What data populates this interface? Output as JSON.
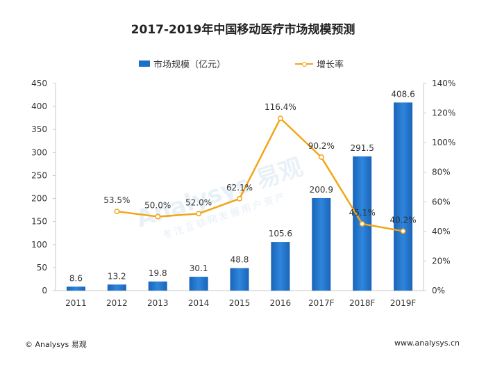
{
  "chart_data": {
    "type": "bar",
    "title": "2017-2019年中国移动医疗市场规模预测",
    "categories": [
      "2011",
      "2012",
      "2013",
      "2014",
      "2015",
      "2016",
      "2017F",
      "2018F",
      "2019F"
    ],
    "series": [
      {
        "name": "市场规模（亿元）",
        "type": "bar",
        "axis": "left",
        "color": "#1c6fc9",
        "values": [
          8.6,
          13.2,
          19.8,
          30.1,
          48.8,
          105.6,
          200.9,
          291.5,
          408.6
        ],
        "labels": [
          "8.6",
          "13.2",
          "19.8",
          "30.1",
          "48.8",
          "105.6",
          "200.9",
          "291.5",
          "408.6"
        ]
      },
      {
        "name": "增长率",
        "type": "line",
        "axis": "right",
        "color": "#f2a516",
        "values": [
          null,
          53.5,
          50.0,
          52.0,
          62.1,
          116.4,
          90.2,
          45.1,
          40.2
        ],
        "labels": [
          "",
          "53.5%",
          "50.0%",
          "52.0%",
          "62.1%",
          "116.4%",
          "90.2%",
          "45.1%",
          "40.2%"
        ]
      }
    ],
    "ylim_left": [
      0,
      450
    ],
    "yticks_left": [
      "0",
      "50",
      "100",
      "150",
      "200",
      "250",
      "300",
      "350",
      "400",
      "450"
    ],
    "ylim_right": [
      0,
      140
    ],
    "yticks_right": [
      "0%",
      "20%",
      "40%",
      "60%",
      "80%",
      "100%",
      "120%",
      "140%"
    ],
    "grid": false,
    "legend": "top-center"
  },
  "watermark": {
    "brand": "Analysys 易观",
    "tagline": "专注互联网发展用户资产"
  },
  "footer": {
    "left": "© Analysys 易观",
    "right": "www.analysys.cn"
  }
}
